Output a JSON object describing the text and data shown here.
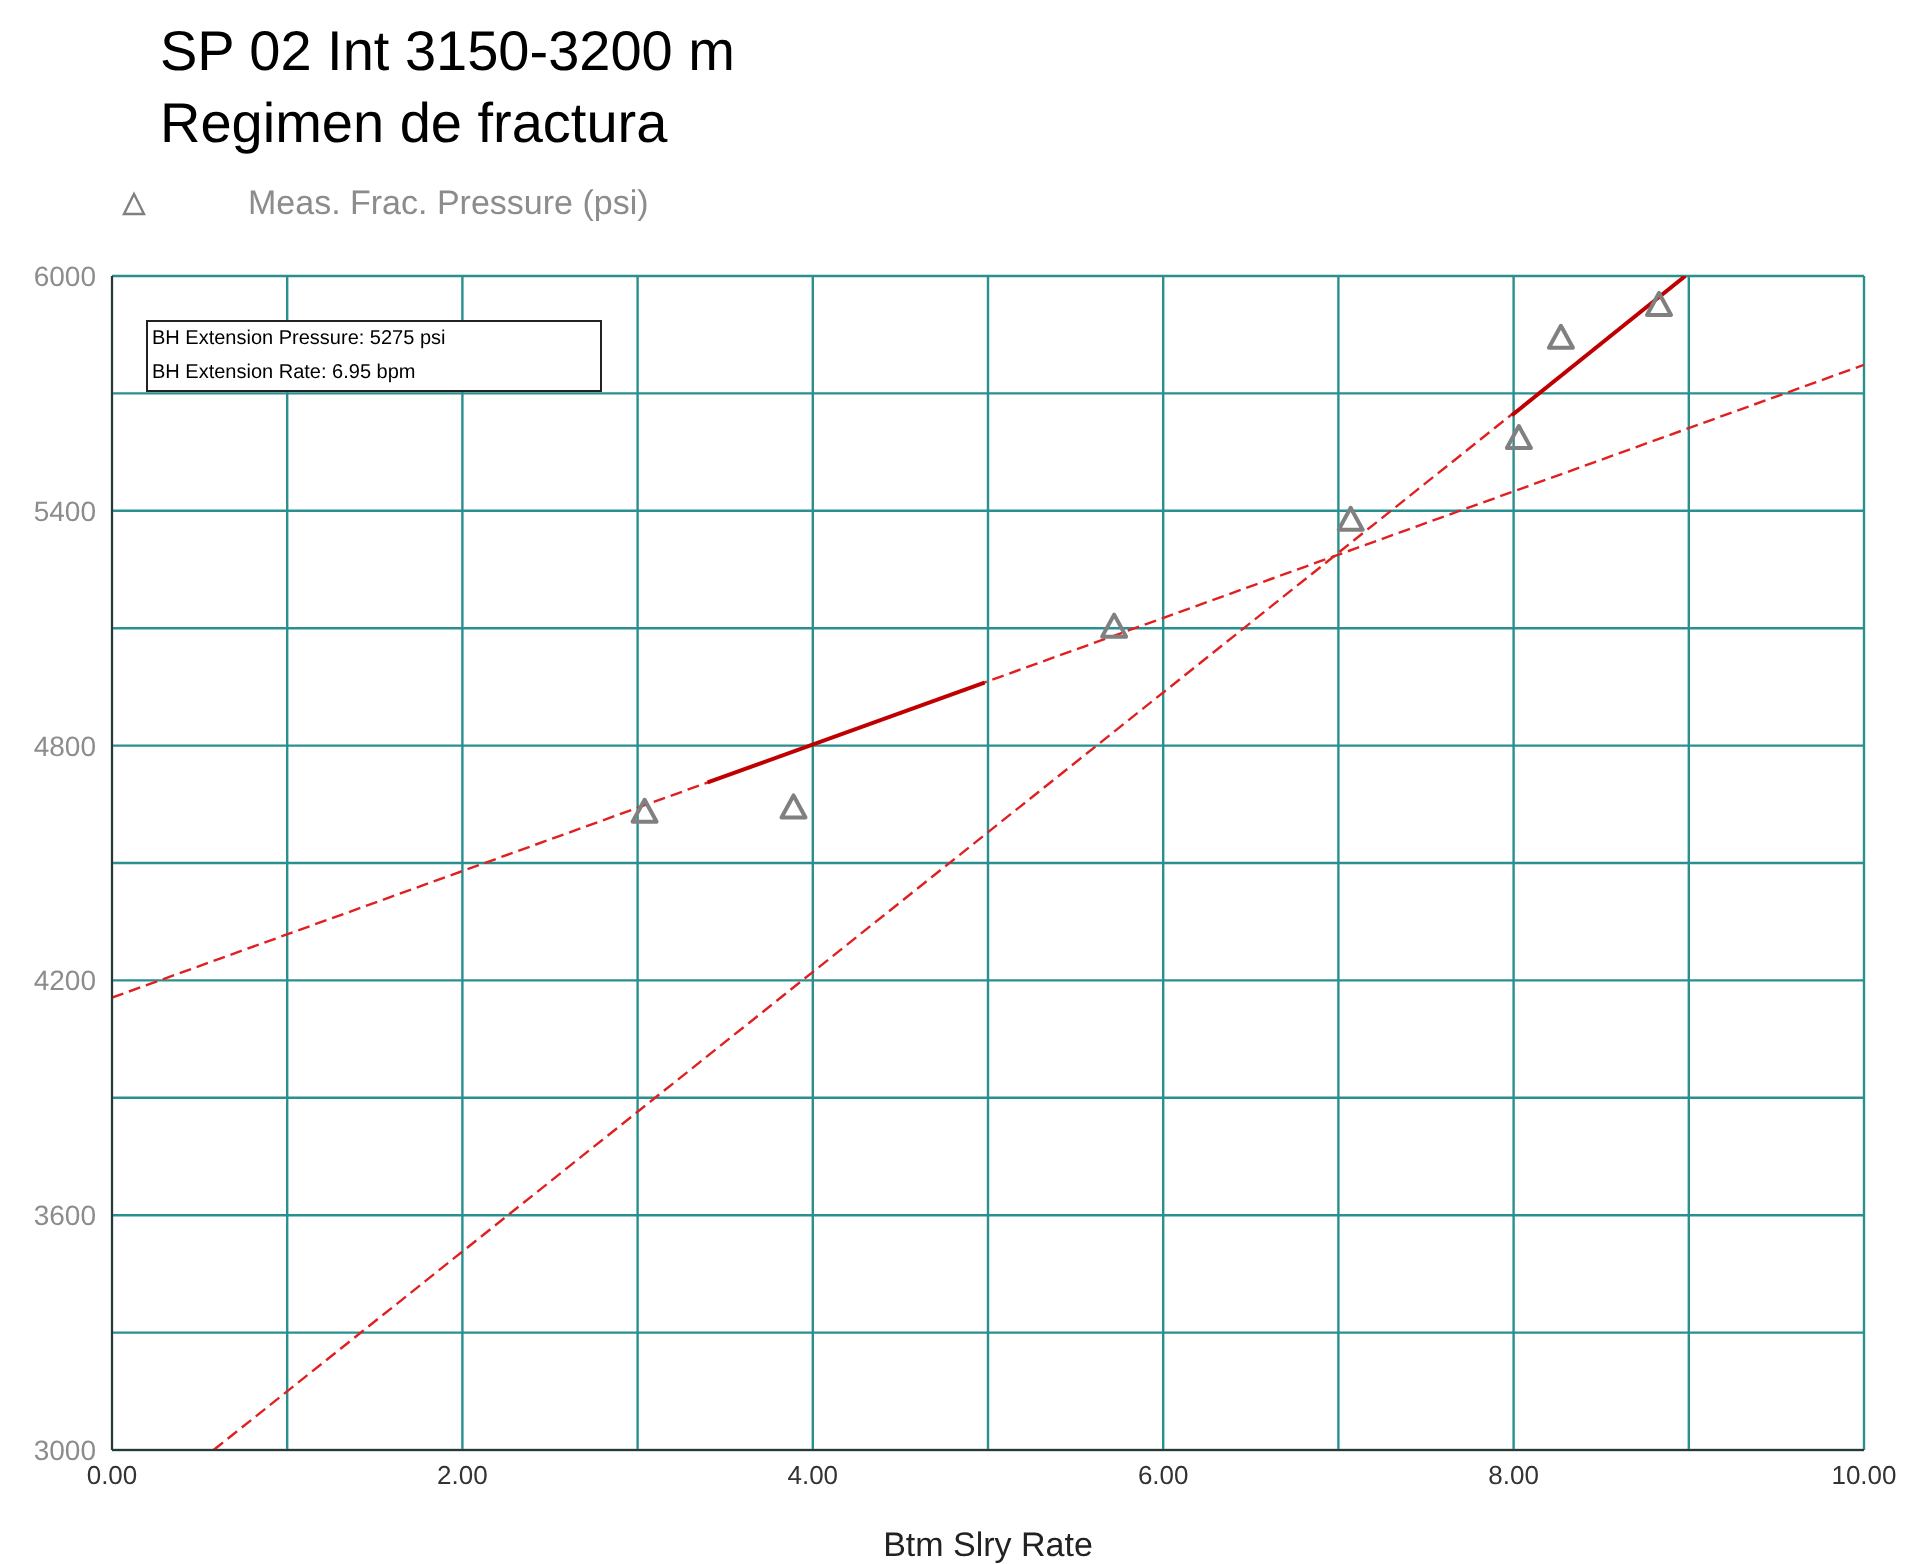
{
  "chart_data": {
    "type": "scatter",
    "title": "SP 02 Int 3150-3200 m",
    "subtitle": "Regimen de fractura",
    "xlabel": "Btm Slry Rate",
    "annotations": [
      "BH Extension Pressure: 5275 psi",
      "BH Extension Rate: 6.95 bpm"
    ],
    "xlim": [
      0,
      10
    ],
    "ylim": [
      3000,
      6000
    ],
    "xticks": [
      {
        "value": 0,
        "label": "0.00"
      },
      {
        "value": 1,
        "label": null
      },
      {
        "value": 2,
        "label": "2.00"
      },
      {
        "value": 3,
        "label": null
      },
      {
        "value": 4,
        "label": "4.00"
      },
      {
        "value": 5,
        "label": null
      },
      {
        "value": 6,
        "label": "6.00"
      },
      {
        "value": 7,
        "label": null
      },
      {
        "value": 8,
        "label": "8.00"
      },
      {
        "value": 9,
        "label": null
      },
      {
        "value": 10,
        "label": "10.00"
      }
    ],
    "yticks": [
      3000,
      {
        "value": 3300,
        "label": null
      },
      3600,
      {
        "value": 3900,
        "label": null
      },
      4200,
      {
        "value": 4500,
        "label": null
      },
      4800,
      {
        "value": 5100,
        "label": null
      },
      5400,
      {
        "value": 5700,
        "label": null
      },
      6000
    ],
    "grid": true,
    "legend": "top left",
    "series": [
      {
        "name": "Meas. Frac. Pressure (psi)",
        "type": "scatter",
        "marker": "triangle",
        "color": "#808080",
        "x": [
          3.04,
          3.89,
          5.72,
          7.07,
          8.03,
          8.27,
          8.83
        ],
        "values": [
          4631,
          4642,
          5104,
          5377,
          5586,
          5842,
          5926
        ]
      },
      {
        "type": "line",
        "marker": "none",
        "line_style": "dashed",
        "color": "#e02020",
        "x": [
          0,
          10
        ],
        "values": [
          4156,
          5773
        ]
      },
      {
        "type": "line",
        "marker": "none",
        "line_style": "solid",
        "color": "#c00000",
        "x": [
          3.4,
          4.98
        ],
        "values": [
          4706,
          4961
        ]
      },
      {
        "type": "line",
        "marker": "none",
        "line_style": "dashed",
        "color": "#e02020",
        "x": [
          0.58,
          8.98
        ],
        "values": [
          3000,
          6000
        ]
      },
      {
        "type": "line",
        "marker": "none",
        "line_style": "solid",
        "color": "#c00000",
        "x": [
          7.99,
          8.98
        ],
        "values": [
          5644,
          6000
        ]
      }
    ]
  }
}
